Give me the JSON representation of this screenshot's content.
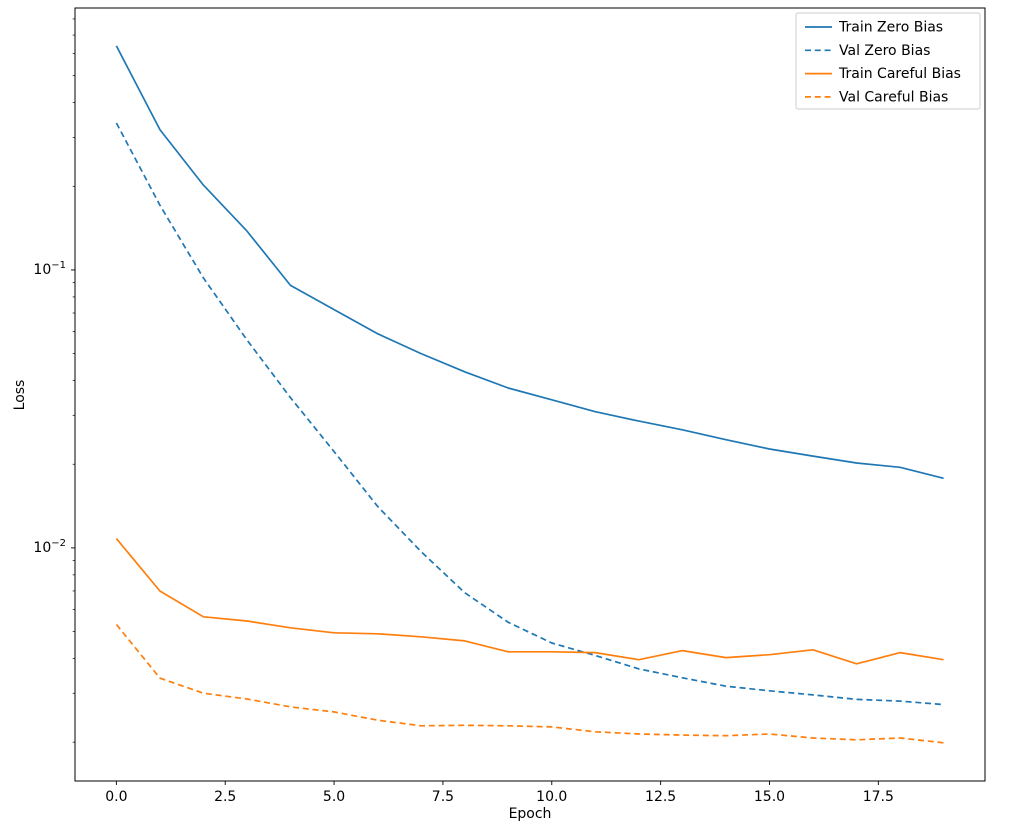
{
  "chart_data": {
    "type": "line",
    "title": "",
    "xlabel": "Epoch",
    "ylabel": "Loss",
    "yscale": "log",
    "grid": false,
    "xlim": [
      -0.95,
      19.95
    ],
    "ylim": [
      0.00145,
      0.876
    ],
    "x": [
      0,
      1,
      2,
      3,
      4,
      5,
      6,
      7,
      8,
      9,
      10,
      11,
      12,
      13,
      14,
      15,
      16,
      17,
      18,
      19
    ],
    "series": [
      {
        "name": "Train Zero Bias",
        "color": "#1f77b4",
        "style": "solid",
        "values": [
          0.64,
          0.32,
          0.202,
          0.138,
          0.088,
          0.072,
          0.059,
          0.05,
          0.043,
          0.0376,
          0.0341,
          0.0309,
          0.0286,
          0.0266,
          0.0245,
          0.0227,
          0.0214,
          0.0202,
          0.0195,
          0.0178
        ]
      },
      {
        "name": "Val Zero Bias",
        "color": "#1f77b4",
        "style": "dashed",
        "values": [
          0.338,
          0.171,
          0.0936,
          0.056,
          0.0347,
          0.0222,
          0.0141,
          0.0097,
          0.0069,
          0.0054,
          0.00455,
          0.0041,
          0.00367,
          0.00341,
          0.00318,
          0.00306,
          0.00296,
          0.00285,
          0.00281,
          0.00273
        ]
      },
      {
        "name": "Train Careful Bias",
        "color": "#ff7f0e",
        "style": "solid",
        "values": [
          0.0108,
          0.007,
          0.00565,
          0.00546,
          0.00516,
          0.00495,
          0.00491,
          0.00479,
          0.00463,
          0.00423,
          0.00423,
          0.0042,
          0.00396,
          0.00427,
          0.00403,
          0.00413,
          0.0043,
          0.00383,
          0.0042,
          0.00396
        ]
      },
      {
        "name": "Val Careful Bias",
        "color": "#ff7f0e",
        "style": "dashed",
        "values": [
          0.0053,
          0.0034,
          0.003,
          0.00286,
          0.00268,
          0.00257,
          0.0024,
          0.00229,
          0.0023,
          0.00229,
          0.00227,
          0.00218,
          0.00214,
          0.00212,
          0.00211,
          0.00214,
          0.00207,
          0.00204,
          0.00207,
          0.00199
        ]
      }
    ],
    "xticks": [
      {
        "v": 0,
        "label": "0.0"
      },
      {
        "v": 2.5,
        "label": "2.5"
      },
      {
        "v": 5,
        "label": "5.0"
      },
      {
        "v": 7.5,
        "label": "7.5"
      },
      {
        "v": 10,
        "label": "10.0"
      },
      {
        "v": 12.5,
        "label": "12.5"
      },
      {
        "v": 15,
        "label": "15.0"
      },
      {
        "v": 17.5,
        "label": "17.5"
      }
    ],
    "yticks": [
      {
        "v": 0.1,
        "base": "10",
        "exp": "−1"
      },
      {
        "v": 0.01,
        "base": "10",
        "exp": "−2"
      }
    ],
    "legend": {
      "location": "upper right",
      "entries": [
        "Train Zero Bias",
        "Val Zero Bias",
        "Train Careful Bias",
        "Val Careful Bias"
      ]
    }
  }
}
